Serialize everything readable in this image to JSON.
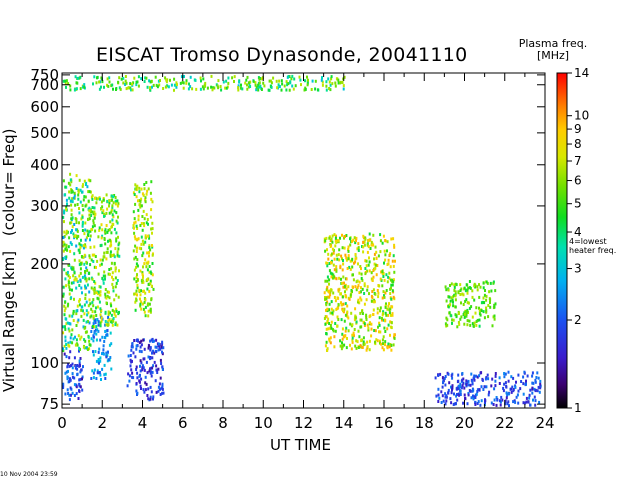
{
  "chart_data": {
    "type": "scatter",
    "title": "EISCAT Tromso Dynasonde,  20041110",
    "xlabel": "UT TIME",
    "ylabel": "Virtual Range [km]",
    "ylabel_note": "(colour= Freq)",
    "x_ticks": [
      "0",
      "2",
      "4",
      "6",
      "8",
      "10",
      "12",
      "14",
      "16",
      "18",
      "20",
      "22",
      "24"
    ],
    "xlim": [
      0,
      24
    ],
    "y_scale": "log",
    "ylim": [
      73,
      760
    ],
    "y_ticks": [
      "75",
      "100",
      "200",
      "300",
      "400",
      "500",
      "600",
      "700",
      "750"
    ],
    "colorbar": {
      "title": "Plasma freq. [MHz]",
      "scale": "log",
      "range": [
        1,
        14
      ],
      "ticks": [
        "1",
        "2",
        "3",
        "4",
        "5",
        "6",
        "7",
        "8",
        "9",
        "10",
        "14"
      ],
      "annotation": "4=lowest heater freq."
    },
    "clusters": [
      {
        "x": [
          0.0,
          1.0
        ],
        "y": [
          78,
          110
        ],
        "freq": [
          1.3,
          2.5
        ]
      },
      {
        "x": [
          0.0,
          1.4
        ],
        "y": [
          110,
          380
        ],
        "freq": [
          2.5,
          7.5
        ]
      },
      {
        "x": [
          1.4,
          2.4
        ],
        "y": [
          90,
          140
        ],
        "freq": [
          1.8,
          3.2
        ]
      },
      {
        "x": [
          1.4,
          2.8
        ],
        "y": [
          130,
          330
        ],
        "freq": [
          3.5,
          8.0
        ]
      },
      {
        "x": [
          3.2,
          5.0
        ],
        "y": [
          78,
          120
        ],
        "freq": [
          1.3,
          2.3
        ]
      },
      {
        "x": [
          3.5,
          4.5
        ],
        "y": [
          140,
          360
        ],
        "freq": [
          4.0,
          8.5
        ]
      },
      {
        "x": [
          0.0,
          14.0
        ],
        "y": [
          680,
          750
        ],
        "freq": [
          3.0,
          7.0
        ]
      },
      {
        "x": [
          13.0,
          16.5
        ],
        "y": [
          110,
          250
        ],
        "freq": [
          4.0,
          10.0
        ]
      },
      {
        "x": [
          18.5,
          23.8
        ],
        "y": [
          75,
          95
        ],
        "freq": [
          1.4,
          2.4
        ]
      },
      {
        "x": [
          19.0,
          21.5
        ],
        "y": [
          130,
          180
        ],
        "freq": [
          4.0,
          7.0
        ]
      }
    ]
  },
  "footer_text": "10 Nov 2004 23:59"
}
